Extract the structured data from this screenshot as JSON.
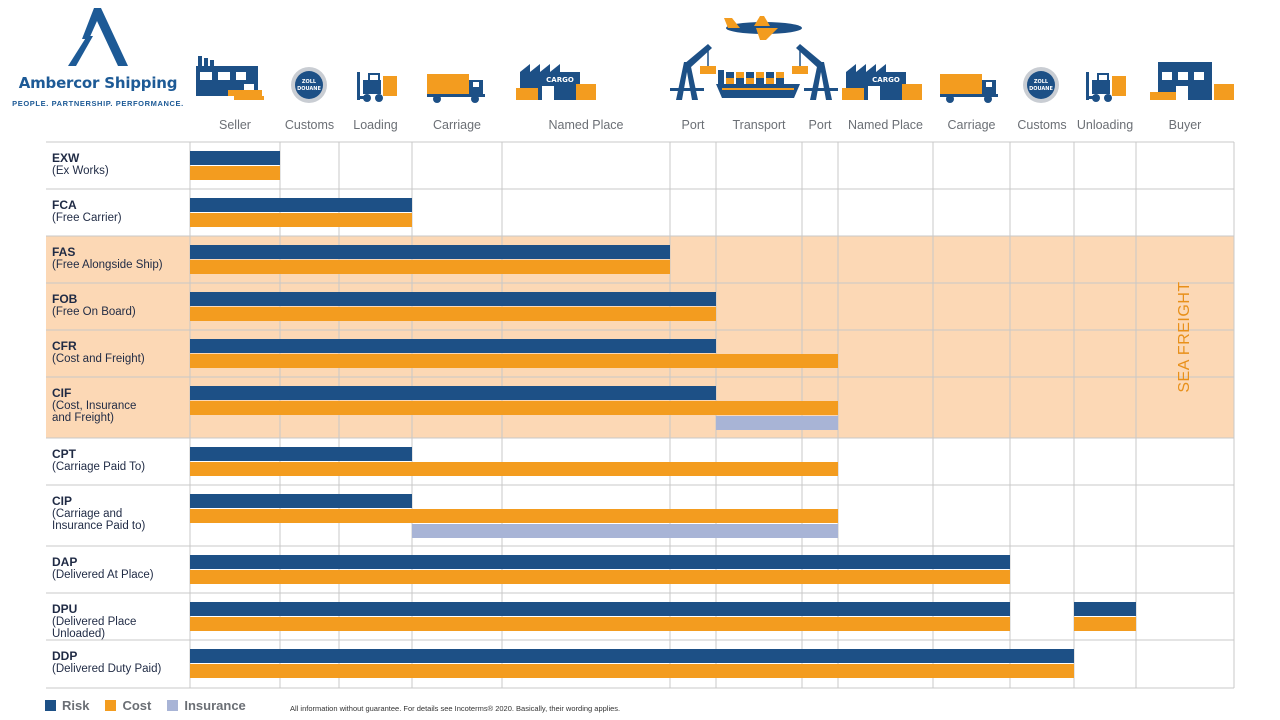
{
  "brand": {
    "name": "Ambercor Shipping",
    "tagline": "PEOPLE. PARTNERSHIP. PERFORMANCE."
  },
  "colors": {
    "risk": "#1d5086",
    "cost": "#f39c1f",
    "insurance": "#a8b4d6",
    "sea_freight_band": "#fcd8b5",
    "grid": "#c8c8c8"
  },
  "icons": {
    "building_text": "CARGO",
    "customs_text_top": "ZOLL",
    "customs_text_bottom": "DOUANE"
  },
  "columns": [
    "Seller",
    "Customs",
    "Loading",
    "Carriage",
    "Named Place",
    "Port",
    "Transport",
    "Port",
    "Named Place",
    "Carriage",
    "Customs",
    "Unloading",
    "Buyer"
  ],
  "terms": [
    {
      "code": "EXW",
      "name": "(Ex Works)",
      "risk_to": 1,
      "cost_to": 1,
      "insurance": null,
      "risk_extra": null,
      "cost_extra": null,
      "sea": false
    },
    {
      "code": "FCA",
      "name": "(Free Carrier)",
      "risk_to": 3,
      "cost_to": 3,
      "insurance": null,
      "risk_extra": null,
      "cost_extra": null,
      "sea": false
    },
    {
      "code": "FAS",
      "name": "(Free Alongside Ship)",
      "risk_to": 5,
      "cost_to": 5,
      "insurance": null,
      "risk_extra": null,
      "cost_extra": null,
      "sea": true
    },
    {
      "code": "FOB",
      "name": "(Free On Board)",
      "risk_to": 6,
      "cost_to": 6,
      "insurance": null,
      "risk_extra": null,
      "cost_extra": null,
      "sea": true
    },
    {
      "code": "CFR",
      "name": "(Cost and Freight)",
      "risk_to": 6,
      "cost_to": 8,
      "insurance": null,
      "risk_extra": null,
      "cost_extra": null,
      "sea": true
    },
    {
      "code": "CIF",
      "name": "(Cost, Insurance\n and Freight)",
      "risk_to": 6,
      "cost_to": 8,
      "insurance": [
        6,
        8
      ],
      "risk_extra": null,
      "cost_extra": null,
      "sea": true
    },
    {
      "code": "CPT",
      "name": "(Carriage Paid To)",
      "risk_to": 3,
      "cost_to": 8,
      "insurance": null,
      "risk_extra": null,
      "cost_extra": null,
      "sea": false
    },
    {
      "code": "CIP",
      "name": "(Carriage and\nInsurance Paid to)",
      "risk_to": 3,
      "cost_to": 8,
      "insurance": [
        3,
        8
      ],
      "risk_extra": null,
      "cost_extra": null,
      "sea": false
    },
    {
      "code": "DAP",
      "name": "(Delivered At Place)",
      "risk_to": 10,
      "cost_to": 10,
      "insurance": null,
      "risk_extra": null,
      "cost_extra": null,
      "sea": false
    },
    {
      "code": "DPU",
      "name": "(Delivered Place\nUnloaded)",
      "risk_to": 10,
      "cost_to": 10,
      "insurance": null,
      "risk_extra": [
        11,
        12
      ],
      "cost_extra": [
        11,
        12
      ],
      "sea": false
    },
    {
      "code": "DDP",
      "name": "(Delivered Duty Paid)",
      "risk_to": 11,
      "cost_to": 11,
      "insurance": null,
      "risk_extra": null,
      "cost_extra": null,
      "sea": false
    }
  ],
  "sea_freight_label": "SEA FREIGHT",
  "legend": [
    {
      "label": "Risk",
      "color": "#1d5086"
    },
    {
      "label": "Cost",
      "color": "#f39c1f"
    },
    {
      "label": "Insurance",
      "color": "#a8b4d6"
    }
  ],
  "footnote": "All information without guarantee. For details see Incoterms® 2020. Basically, their wording applies."
}
